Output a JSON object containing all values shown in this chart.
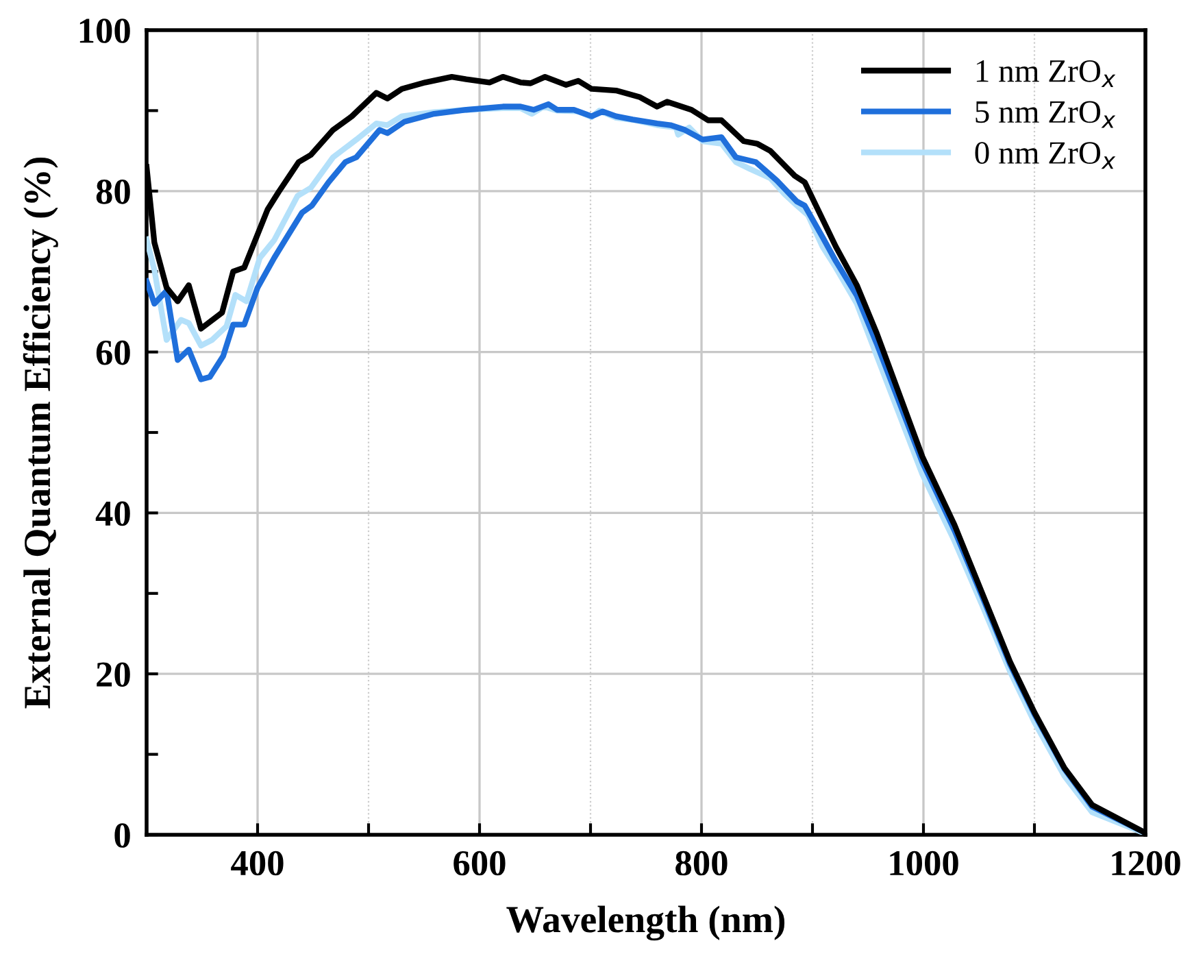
{
  "chart_data": {
    "type": "line",
    "xlabel": "Wavelength (nm)",
    "ylabel": "External Quantum Efficiency (%)",
    "xlim": [
      300,
      1200
    ],
    "ylim": [
      0,
      100
    ],
    "xticks": [
      400,
      {
        "value": 500,
        "label": null
      },
      600,
      {
        "value": 700,
        "label": null
      },
      800,
      {
        "value": 900,
        "label": null
      },
      1000,
      {
        "value": 1100,
        "label": null
      },
      1200
    ],
    "yticks": [
      0,
      {
        "value": 10,
        "label": null
      },
      20,
      {
        "value": 30,
        "label": null
      },
      40,
      {
        "value": 50,
        "label": null
      },
      60,
      {
        "value": 70,
        "label": null
      },
      80,
      {
        "value": 90,
        "label": null
      },
      100
    ],
    "grid": true,
    "legend": "top right",
    "line_style": "solid",
    "marker": "none",
    "series": [
      {
        "name": "1 nm ZrO$_{x}$",
        "color": "#000000",
        "x": [
          300,
          307,
          318,
          328,
          338,
          349,
          368,
          378,
          388,
          409,
          419,
          437,
          448,
          468,
          485,
          507,
          517,
          530,
          551,
          575,
          588,
          609,
          621,
          637,
          646,
          659,
          678,
          689,
          701,
          723,
          744,
          760,
          769,
          791,
          806,
          818,
          838,
          850,
          862,
          884,
          893,
          921,
          940,
          958,
          999,
          1028,
          1053,
          1078,
          1100,
          1127,
          1152,
          1199
        ],
        "values": [
          83.0,
          73.6,
          68,
          66.3,
          68.3,
          62.9,
          64.9,
          70,
          70.5,
          77.7,
          79.9,
          83.6,
          84.5,
          87.6,
          89.3,
          92.2,
          91.5,
          92.7,
          93.5,
          94.2,
          93.9,
          93.5,
          94.2,
          93.5,
          93.4,
          94.2,
          93.2,
          93.7,
          92.7,
          92.5,
          91.7,
          90.5,
          91.1,
          90.1,
          88.8,
          88.8,
          86.2,
          85.9,
          85,
          81.9,
          81.1,
          73.1,
          68.3,
          62.3,
          47,
          38.5,
          30,
          21.5,
          15.2,
          8.3,
          3.7,
          0.3
        ]
      },
      {
        "name": "5 nm ZrO$_{x}$",
        "color": "#1f6fdb",
        "x": [
          300,
          307,
          318,
          328,
          338,
          349,
          357,
          369,
          378,
          388,
          400,
          415,
          427,
          440,
          449,
          464,
          479,
          489,
          510,
          517,
          532,
          559,
          588,
          621,
          637,
          649,
          662,
          670,
          685,
          701,
          711,
          723,
          738,
          760,
          772,
          785,
          801,
          818,
          831,
          849,
          868,
          886,
          893,
          909,
          921,
          940,
          958,
          999,
          1028,
          1053,
          1078,
          1100,
          1127,
          1152,
          1199
        ],
        "values": [
          68.8,
          66,
          67.6,
          59,
          60.3,
          56.6,
          56.9,
          59.5,
          63.4,
          63.4,
          68,
          71.7,
          74.4,
          77.3,
          78.2,
          81.1,
          83.6,
          84.2,
          87.6,
          87.2,
          88.6,
          89.6,
          90.1,
          90.5,
          90.5,
          90.1,
          90.8,
          90.1,
          90.1,
          89.3,
          89.9,
          89.3,
          88.9,
          88.4,
          88.2,
          87.6,
          86.4,
          86.7,
          84.2,
          83.6,
          81.3,
          78.7,
          78.2,
          74.3,
          71.3,
          67,
          61.0,
          46.3,
          37.8,
          29.6,
          21.2,
          15,
          8.2,
          3.5,
          0.3
        ]
      },
      {
        "name": "0 nm ZrO$_{x}$",
        "color": "#b3e0fa",
        "x": [
          300,
          307,
          318,
          331,
          338,
          349,
          359,
          372,
          380,
          390,
          402,
          415,
          436,
          448,
          468,
          489,
          507,
          517,
          530,
          559,
          588,
          621,
          637,
          647,
          658,
          670,
          689,
          701,
          708,
          723,
          740,
          760,
          777,
          779,
          789,
          801,
          818,
          831,
          843,
          862,
          875,
          886,
          896,
          909,
          921,
          940,
          958,
          999,
          1028,
          1053,
          1078,
          1100,
          1127,
          1152,
          1199
        ],
        "values": [
          74,
          70.2,
          61.5,
          64,
          63.6,
          60.8,
          61.5,
          63.2,
          67.1,
          66.3,
          71.7,
          73.9,
          79.4,
          80.4,
          84.2,
          86.4,
          88.4,
          88.2,
          89.3,
          89.8,
          90.1,
          90.3,
          90.3,
          89.6,
          90.5,
          90,
          89.9,
          89.2,
          90,
          89.1,
          88.8,
          88.2,
          87.9,
          87,
          87.9,
          86.2,
          85.9,
          83.6,
          82.8,
          81.6,
          79.6,
          78.2,
          77,
          73.1,
          70.5,
          66,
          59.5,
          44.8,
          36.5,
          28.5,
          20.3,
          14,
          7.3,
          2.8,
          0.2
        ]
      }
    ]
  }
}
